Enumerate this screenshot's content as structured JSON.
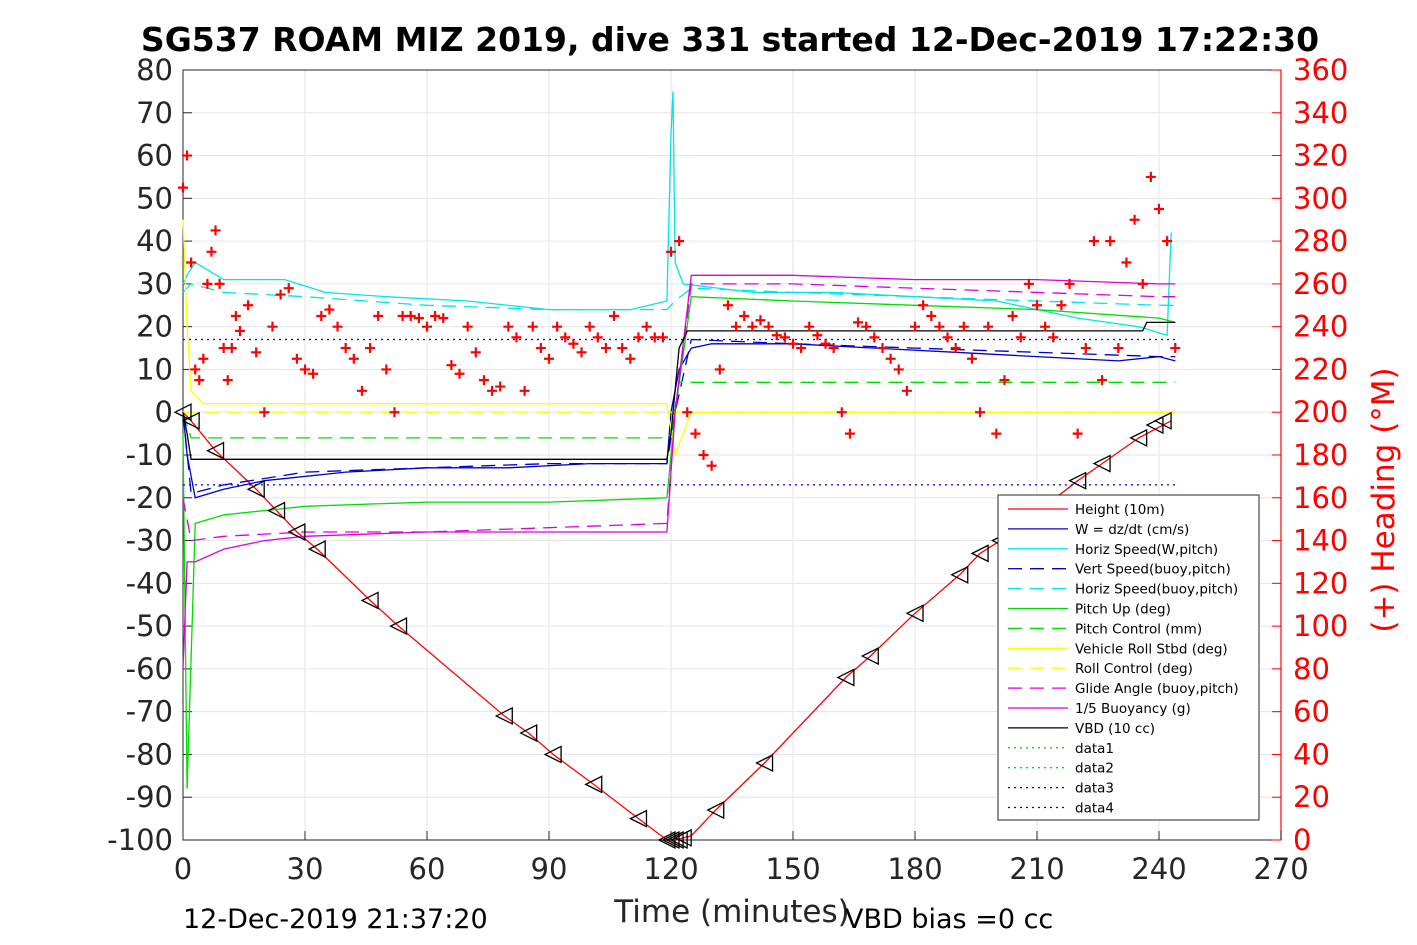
{
  "chart_data": {
    "type": "line",
    "title": "SG537 ROAM MIZ 2019, dive 331 started 12-Dec-2019 17:22:30",
    "xlabel": "Time (minutes)",
    "y2label": "(+) Heading (°M)",
    "footer_left": "12-Dec-2019 21:37:20",
    "footer_right": "VBD bias =0 cc",
    "xlim": [
      0,
      270
    ],
    "ylim": [
      -100,
      80
    ],
    "y2lim": [
      0,
      360
    ],
    "xticks": [
      0,
      30,
      60,
      90,
      120,
      150,
      180,
      210,
      240,
      270
    ],
    "yticks": [
      -100,
      -90,
      -80,
      -70,
      -60,
      -50,
      -40,
      -30,
      -20,
      -10,
      0,
      10,
      20,
      30,
      40,
      50,
      60,
      70,
      80
    ],
    "y2ticks": [
      0,
      20,
      40,
      60,
      80,
      100,
      120,
      140,
      160,
      180,
      200,
      220,
      240,
      260,
      280,
      300,
      320,
      340,
      360
    ],
    "grid": true,
    "legend_position": "bottom-right",
    "colors": {
      "height": "#ff0000",
      "w": "#0000cc",
      "horiz_speed": "#00e5e5",
      "pitch": "#00dd00",
      "roll": "#ffff00",
      "glide_buoy": "#dd00dd",
      "vbd": "#000000",
      "heading": "#ff0000"
    },
    "series": [
      {
        "name": "Height (10m)",
        "style": "solid",
        "color": "#ff0000",
        "x": [
          0,
          2,
          8,
          18,
          23,
          28,
          33,
          46,
          53,
          79,
          85,
          91,
          101,
          112,
          119,
          121,
          123,
          125,
          131,
          143,
          163,
          169,
          180,
          191,
          196,
          201,
          220,
          226,
          235,
          241,
          243
        ],
        "y": [
          0,
          -2,
          -9,
          -18,
          -23,
          -28,
          -32,
          -44,
          -50,
          -71,
          -75,
          -80,
          -87,
          -95,
          -100,
          -100,
          -99.5,
          -99,
          -93,
          -82,
          -62,
          -57,
          -47,
          -38,
          -33,
          -30,
          -16,
          -12,
          -6,
          -3,
          -2
        ]
      },
      {
        "name": "W = dz/dt (cm/s)",
        "style": "solid",
        "color": "#0000cc",
        "x": [
          0,
          1,
          3,
          10,
          20,
          40,
          60,
          80,
          100,
          119,
          120,
          122,
          125,
          130,
          150,
          170,
          190,
          210,
          230,
          240,
          244
        ],
        "y": [
          0,
          -10,
          -20,
          -18,
          -16,
          -14,
          -13,
          -13,
          -12,
          -12,
          0,
          10,
          15,
          16,
          16,
          15,
          14,
          13,
          12,
          13,
          12
        ]
      },
      {
        "name": "Horiz Speed(W,pitch)",
        "style": "solid",
        "color": "#00e5e5",
        "x": [
          0,
          1,
          3,
          10,
          25,
          35,
          50,
          70,
          90,
          110,
          119,
          120,
          120.5,
          121,
          123,
          140,
          160,
          180,
          200,
          220,
          235,
          242,
          243
        ],
        "y": [
          30,
          32,
          35,
          31,
          31,
          28,
          27,
          26,
          24,
          24,
          26,
          65,
          75,
          35,
          30,
          28,
          28,
          27,
          26,
          22,
          20,
          18,
          42
        ]
      },
      {
        "name": "Vert Speed(buoy,pitch)",
        "style": "dashed",
        "color": "#0000cc",
        "x": [
          0,
          2,
          10,
          30,
          60,
          90,
          119,
          121,
          125,
          150,
          180,
          210,
          240,
          244
        ],
        "y": [
          0,
          -19,
          -17,
          -14,
          -13,
          -12,
          -12,
          0,
          17,
          16,
          15,
          14,
          13,
          13
        ]
      },
      {
        "name": "Horiz Speed(buoy,pitch)",
        "style": "dashed",
        "color": "#00e5e5",
        "x": [
          0,
          2,
          10,
          30,
          60,
          90,
          119,
          121,
          125,
          150,
          180,
          210,
          240,
          244
        ],
        "y": [
          28,
          30,
          28,
          27,
          25,
          24,
          24,
          26,
          29,
          28,
          27,
          26,
          25,
          25
        ]
      },
      {
        "name": "Pitch Up (deg)",
        "style": "solid",
        "color": "#00dd00",
        "x": [
          0,
          1,
          3,
          10,
          30,
          60,
          90,
          119,
          121,
          125,
          150,
          180,
          210,
          240,
          244
        ],
        "y": [
          -5,
          -88,
          -26,
          -24,
          -22,
          -21,
          -21,
          -20,
          0,
          27,
          26,
          25,
          24,
          22,
          21
        ]
      },
      {
        "name": "Pitch Control (mm)",
        "style": "dashed",
        "color": "#00dd00",
        "x": [
          0,
          2,
          119,
          120,
          122,
          244
        ],
        "y": [
          0,
          -6,
          -6,
          -5,
          7,
          7
        ]
      },
      {
        "name": "Vehicle Roll Stbd (deg)",
        "style": "solid",
        "color": "#ffff00",
        "x": [
          0,
          1,
          2,
          5,
          10,
          20,
          40,
          60,
          80,
          100,
          119,
          121,
          125,
          150,
          180,
          210,
          240,
          244
        ],
        "y": [
          45,
          20,
          5,
          2,
          2,
          2,
          2,
          2,
          2,
          2,
          2,
          -10,
          0,
          0,
          0,
          0,
          0,
          0
        ]
      },
      {
        "name": "Roll Control (deg)",
        "style": "dashed",
        "color": "#ffff00",
        "x": [
          0,
          244
        ],
        "y": [
          0,
          0
        ]
      },
      {
        "name": "Glide Angle (buoy,pitch)",
        "style": "dashed",
        "color": "#dd00dd",
        "x": [
          0,
          2,
          10,
          30,
          60,
          90,
          119,
          121,
          125,
          150,
          180,
          210,
          240,
          244
        ],
        "y": [
          -20,
          -30,
          -29,
          -28,
          -28,
          -27,
          -26,
          0,
          30,
          30,
          29,
          28,
          27,
          27
        ]
      },
      {
        "name": "1/5 Buoyancy (g)",
        "style": "solid",
        "color": "#dd00dd",
        "x": [
          0,
          1,
          3,
          10,
          20,
          30,
          60,
          90,
          119,
          121,
          125,
          150,
          180,
          210,
          240,
          244
        ],
        "y": [
          -60,
          -35,
          -35,
          -32,
          -30,
          -29,
          -28,
          -28,
          -28,
          0,
          32,
          32,
          31,
          31,
          30,
          30
        ]
      },
      {
        "name": "VBD (10 cc)",
        "style": "solid",
        "color": "#000000",
        "x": [
          0,
          1,
          2,
          119,
          120,
          122,
          124,
          236,
          237,
          244
        ],
        "y": [
          0,
          -5,
          -11,
          -11,
          -5,
          15,
          19,
          19,
          21,
          21
        ]
      },
      {
        "name": "data1",
        "style": "dotted",
        "color": "#00dd00",
        "x": [],
        "y": []
      },
      {
        "name": "data2",
        "style": "dotted",
        "color": "#00dd00",
        "x": [],
        "y": []
      },
      {
        "name": "data3",
        "style": "dotted",
        "color": "#0000cc",
        "x": [
          0,
          244
        ],
        "y": [
          17,
          17
        ]
      },
      {
        "name": "data4",
        "style": "dotted",
        "color": "#0000cc",
        "x": [
          0,
          244
        ],
        "y": [
          -17,
          -17
        ]
      }
    ],
    "heading_series": {
      "axis": "y2",
      "marker": "+",
      "color": "#ff0000",
      "x": [
        0,
        1,
        2,
        3,
        4,
        5,
        6,
        7,
        8,
        9,
        10,
        11,
        12,
        13,
        14,
        16,
        18,
        20,
        22,
        24,
        26,
        28,
        30,
        32,
        34,
        36,
        38,
        40,
        42,
        44,
        46,
        48,
        50,
        52,
        54,
        56,
        58,
        60,
        62,
        64,
        66,
        68,
        70,
        72,
        74,
        76,
        78,
        80,
        82,
        84,
        86,
        88,
        90,
        92,
        94,
        96,
        98,
        100,
        102,
        104,
        106,
        108,
        110,
        112,
        114,
        116,
        118,
        120,
        122,
        124,
        126,
        128,
        130,
        132,
        134,
        136,
        138,
        140,
        142,
        144,
        146,
        148,
        150,
        152,
        154,
        156,
        158,
        160,
        162,
        164,
        166,
        168,
        170,
        172,
        174,
        176,
        178,
        180,
        182,
        184,
        186,
        188,
        190,
        192,
        194,
        196,
        198,
        200,
        202,
        204,
        206,
        208,
        210,
        212,
        214,
        216,
        218,
        220,
        222,
        224,
        226,
        228,
        230,
        232,
        234,
        236,
        238,
        240,
        242,
        244
      ],
      "y": [
        305,
        320,
        270,
        220,
        215,
        225,
        260,
        275,
        285,
        260,
        230,
        215,
        230,
        245,
        238,
        250,
        228,
        200,
        240,
        255,
        258,
        225,
        220,
        218,
        245,
        248,
        240,
        230,
        225,
        210,
        230,
        245,
        220,
        200,
        245,
        245,
        244,
        240,
        245,
        244,
        222,
        218,
        240,
        228,
        215,
        210,
        212,
        240,
        235,
        210,
        240,
        230,
        225,
        240,
        235,
        232,
        228,
        240,
        235,
        230,
        245,
        230,
        225,
        235,
        240,
        235,
        235,
        275,
        280,
        200,
        190,
        180,
        175,
        220,
        250,
        240,
        245,
        240,
        243,
        240,
        236,
        235,
        232,
        230,
        240,
        236,
        232,
        230,
        200,
        190,
        242,
        240,
        235,
        230,
        225,
        220,
        210,
        240,
        250,
        245,
        240,
        235,
        230,
        240,
        225,
        200,
        240,
        190,
        215,
        245,
        235,
        260,
        250,
        240,
        235,
        250,
        260,
        190,
        230,
        280,
        215,
        280,
        230,
        270,
        290,
        260,
        310,
        295,
        280,
        230
      ]
    },
    "marker_series": {
      "x": [
        0,
        2,
        8,
        18,
        23,
        28,
        33,
        46,
        53,
        79,
        85,
        91,
        101,
        112,
        119,
        120,
        121,
        122,
        123,
        131,
        143,
        163,
        169,
        180,
        191,
        196,
        201,
        220,
        226,
        235,
        239,
        241
      ],
      "y": [
        0,
        -2,
        -9,
        -18,
        -23,
        -28,
        -32,
        -44,
        -50,
        -71,
        -75,
        -80,
        -87,
        -95,
        -100,
        -100,
        -100,
        -100,
        -99.5,
        -93,
        -82,
        -62,
        -57,
        -47,
        -38,
        -33,
        -30,
        -16,
        -12,
        -6,
        -3,
        -2
      ]
    }
  }
}
